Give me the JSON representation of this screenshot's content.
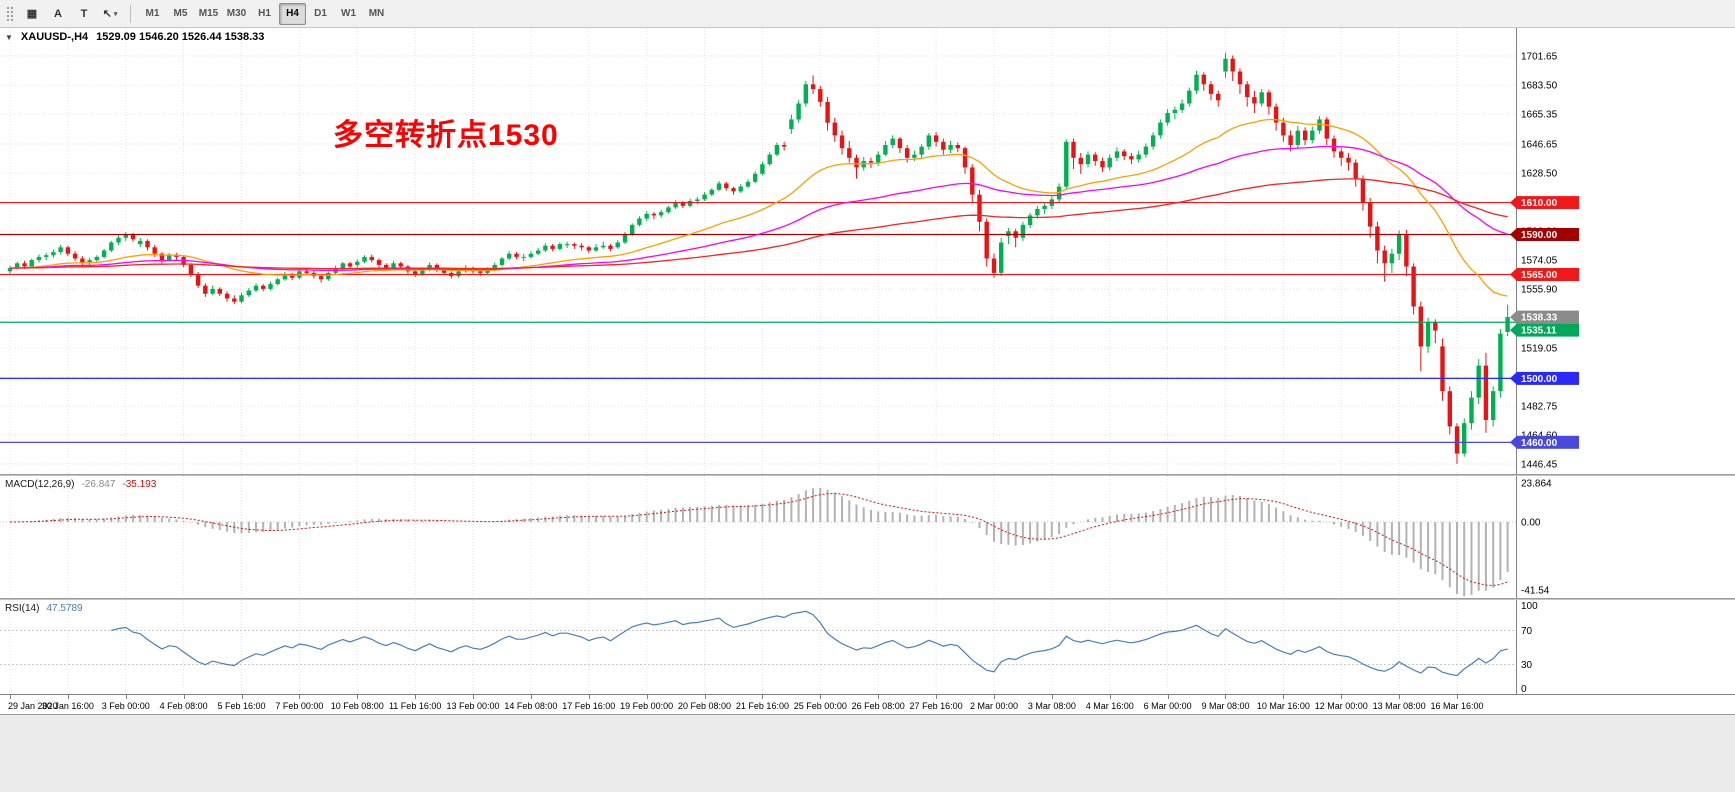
{
  "toolbar": {
    "grid_glyph": "▦",
    "text_tool_label": "A",
    "crosshair_label": "T",
    "cursor_glyph": "↖",
    "caret_glyph": "▾",
    "timeframes": [
      "M1",
      "M5",
      "M15",
      "M30",
      "H1",
      "H4",
      "D1",
      "W1",
      "MN"
    ],
    "active_timeframe": "H4"
  },
  "chart": {
    "collapse_icon": "▼",
    "title": "XAUUSD-,H4",
    "ohlc_text": "1529.09 1546.20 1526.44 1538.33",
    "annotation_text": "多空转折点1530",
    "annotation_color": "#ff0000"
  },
  "chart_data": {
    "type": "candlestick",
    "symbol": "XAUUSD-",
    "timeframe": "H4",
    "up_color": "#00b14f",
    "down_color": "#e81414",
    "ylim": [
      1440.2,
      1719.2
    ],
    "label_step": 8,
    "price_axis": {
      "labels": [
        "1701.65",
        "1683.50",
        "1665.35",
        "1646.65",
        "1628.50",
        "1610.35",
        "1592.20",
        "1574.05",
        "1555.90",
        "1537.75",
        "1519.05",
        "1500.90",
        "1482.75",
        "1464.60",
        "1446.45"
      ]
    },
    "time_labels": [
      "29 Jan 2020",
      "30 Jan 16:00",
      "3 Feb 00:00",
      "4 Feb 08:00",
      "5 Feb 16:00",
      "7 Feb 00:00",
      "10 Feb 08:00",
      "11 Feb 16:00",
      "13 Feb 00:00",
      "14 Feb 08:00",
      "17 Feb 16:00",
      "19 Feb 00:00",
      "20 Feb 08:00",
      "21 Feb 16:00",
      "25 Feb 00:00",
      "26 Feb 08:00",
      "27 Feb 16:00",
      "2 Mar 00:00",
      "3 Mar 08:00",
      "4 Mar 16:00",
      "6 Mar 00:00",
      "9 Mar 08:00",
      "10 Mar 16:00",
      "12 Mar 00:00",
      "13 Mar 08:00",
      "16 Mar 16:00"
    ],
    "hlines": [
      {
        "price": 1610.0,
        "label": "1610.00",
        "color": "#f01818"
      },
      {
        "price": 1590.0,
        "label": "1590.00",
        "color": "#a40000"
      },
      {
        "price": 1565.0,
        "label": "1565.00",
        "color": "#f01818"
      },
      {
        "price": 1535.11,
        "label": "1535.11",
        "color": "#00a85c"
      },
      {
        "price": 1500.0,
        "label": "1500.00",
        "color": "#2828ff"
      },
      {
        "price": 1460.0,
        "label": "1460.00",
        "color": "#4848dc"
      }
    ],
    "price_badges": [
      {
        "price": 1538.33,
        "label": "1538.33",
        "color": "#8b8b8b"
      }
    ],
    "moving_averages": [
      {
        "period": 30,
        "color": "#ffa000"
      },
      {
        "period": 70,
        "color": "#ff00ff"
      },
      {
        "period": 150,
        "color": "#ff2020"
      }
    ],
    "ohlc": [
      [
        1567,
        1570.5,
        1565.5,
        1569
      ],
      [
        1569,
        1573,
        1568,
        1572
      ],
      [
        1572,
        1573.5,
        1568.5,
        1570
      ],
      [
        1570,
        1575,
        1569.5,
        1574
      ],
      [
        1574,
        1577.5,
        1572.5,
        1576
      ],
      [
        1576,
        1578.5,
        1574,
        1577
      ],
      [
        1577,
        1580.5,
        1575.5,
        1579
      ],
      [
        1579,
        1583.5,
        1577.5,
        1582
      ],
      [
        1582,
        1583,
        1576.5,
        1578
      ],
      [
        1578,
        1579.5,
        1573.5,
        1575
      ],
      [
        1575,
        1576.5,
        1570,
        1572
      ],
      [
        1572,
        1575.5,
        1571,
        1574
      ],
      [
        1574,
        1577,
        1572.5,
        1576
      ],
      [
        1576,
        1581,
        1575,
        1580
      ],
      [
        1580,
        1586,
        1579,
        1585
      ],
      [
        1585,
        1589.5,
        1583.5,
        1588
      ],
      [
        1588,
        1591.5,
        1586,
        1590
      ],
      [
        1590,
        1591,
        1585.5,
        1587
      ],
      [
        1584,
        1588,
        1582,
        1586
      ],
      [
        1586,
        1587,
        1580,
        1582
      ],
      [
        1582,
        1583.5,
        1576,
        1578
      ],
      [
        1578,
        1579,
        1572,
        1574
      ],
      [
        1574,
        1578.5,
        1573,
        1577
      ],
      [
        1577,
        1578.5,
        1574,
        1576
      ],
      [
        1576,
        1577,
        1569.5,
        1571
      ],
      [
        1571,
        1572,
        1563.5,
        1565
      ],
      [
        1565,
        1566.5,
        1556.5,
        1558
      ],
      [
        1558,
        1559.5,
        1551,
        1553
      ],
      [
        1553,
        1558,
        1552,
        1556
      ],
      [
        1556,
        1557,
        1551.5,
        1553
      ],
      [
        1553,
        1554.5,
        1548,
        1550
      ],
      [
        1550,
        1552,
        1546.5,
        1548
      ],
      [
        1548,
        1553.5,
        1547,
        1552
      ],
      [
        1552,
        1556.5,
        1551,
        1555
      ],
      [
        1555,
        1559.5,
        1554,
        1558
      ],
      [
        1558,
        1559,
        1554.5,
        1556
      ],
      [
        1556,
        1560.5,
        1555,
        1559
      ],
      [
        1559,
        1563,
        1558,
        1562
      ],
      [
        1562,
        1566.5,
        1561,
        1565
      ],
      [
        1565,
        1566,
        1561.5,
        1563
      ],
      [
        1563,
        1568,
        1562,
        1567
      ],
      [
        1567,
        1568.5,
        1564.5,
        1566
      ],
      [
        1566,
        1567.5,
        1562.5,
        1564
      ],
      [
        1564,
        1565,
        1560,
        1562
      ],
      [
        1562,
        1567,
        1561,
        1566
      ],
      [
        1566,
        1570.5,
        1565,
        1569
      ],
      [
        1569,
        1573,
        1568,
        1572
      ],
      [
        1572,
        1573,
        1568.5,
        1570
      ],
      [
        1571,
        1574.5,
        1569.5,
        1573
      ],
      [
        1573,
        1577,
        1572,
        1576
      ],
      [
        1576,
        1577.5,
        1572.5,
        1574
      ],
      [
        1574,
        1575,
        1569.5,
        1571
      ],
      [
        1571,
        1572,
        1567.5,
        1569
      ],
      [
        1569,
        1573.5,
        1568,
        1572
      ],
      [
        1572,
        1573,
        1568.5,
        1570
      ],
      [
        1570,
        1571,
        1565.5,
        1567
      ],
      [
        1567,
        1568,
        1563.5,
        1565
      ],
      [
        1565,
        1569.5,
        1564,
        1568
      ],
      [
        1568,
        1572.5,
        1567,
        1571
      ],
      [
        1571,
        1572,
        1566.5,
        1568
      ],
      [
        1568,
        1569,
        1564.5,
        1566
      ],
      [
        1566,
        1567,
        1562.5,
        1564
      ],
      [
        1564,
        1568.5,
        1563,
        1567
      ],
      [
        1567,
        1571,
        1566,
        1569
      ],
      [
        1569,
        1570,
        1565.5,
        1567
      ],
      [
        1567,
        1568.5,
        1564,
        1566
      ],
      [
        1566,
        1569.5,
        1565,
        1568
      ],
      [
        1568,
        1572.5,
        1567,
        1571
      ],
      [
        1571,
        1576,
        1570,
        1575
      ],
      [
        1575,
        1579.5,
        1574,
        1578
      ],
      [
        1578,
        1579,
        1574.5,
        1576
      ],
      [
        1576,
        1578,
        1573.5,
        1576
      ],
      [
        1576,
        1579.5,
        1575,
        1578
      ],
      [
        1578,
        1581.5,
        1577,
        1580
      ],
      [
        1580,
        1584.5,
        1579,
        1583
      ],
      [
        1583,
        1584,
        1579.5,
        1581
      ],
      [
        1581,
        1585,
        1580,
        1584
      ],
      [
        1584,
        1585.5,
        1581.5,
        1584
      ],
      [
        1584,
        1585,
        1581,
        1583
      ],
      [
        1583,
        1584.5,
        1580,
        1582
      ],
      [
        1582,
        1583,
        1578.5,
        1580
      ],
      [
        1580,
        1584,
        1579,
        1582
      ],
      [
        1582,
        1585.5,
        1581,
        1583
      ],
      [
        1583,
        1584,
        1579.5,
        1581
      ],
      [
        1582,
        1586.5,
        1581,
        1585
      ],
      [
        1585,
        1591.5,
        1584,
        1590
      ],
      [
        1590,
        1597,
        1589,
        1596
      ],
      [
        1596,
        1601.5,
        1595,
        1600
      ],
      [
        1600,
        1604.5,
        1598.5,
        1603
      ],
      [
        1603,
        1604,
        1599.5,
        1602
      ],
      [
        1602,
        1605.5,
        1600.5,
        1604
      ],
      [
        1604,
        1608,
        1603,
        1607
      ],
      [
        1607,
        1611.5,
        1606,
        1610
      ],
      [
        1610,
        1611,
        1606.5,
        1608
      ],
      [
        1608,
        1612.5,
        1607,
        1611
      ],
      [
        1611,
        1613.5,
        1609,
        1612
      ],
      [
        1612,
        1616.5,
        1611,
        1615
      ],
      [
        1615,
        1619,
        1614,
        1618
      ],
      [
        1618,
        1623.5,
        1617,
        1622
      ],
      [
        1622,
        1623,
        1617.5,
        1619
      ],
      [
        1619,
        1620,
        1615,
        1617
      ],
      [
        1617,
        1621.5,
        1616,
        1620
      ],
      [
        1620,
        1624.5,
        1619,
        1623
      ],
      [
        1623,
        1629.5,
        1622,
        1628
      ],
      [
        1628,
        1635.5,
        1627,
        1634
      ],
      [
        1634,
        1641.5,
        1633,
        1640
      ],
      [
        1640,
        1647.5,
        1639,
        1646
      ],
      [
        1646,
        1648,
        1642.5,
        1645
      ],
      [
        1656,
        1665,
        1653,
        1662
      ],
      [
        1662,
        1674,
        1660,
        1672
      ],
      [
        1672,
        1686,
        1670,
        1684
      ],
      [
        1684,
        1689.5,
        1678,
        1681
      ],
      [
        1681,
        1683,
        1670,
        1673
      ],
      [
        1673,
        1676,
        1655,
        1660
      ],
      [
        1660,
        1663,
        1648,
        1652
      ],
      [
        1652,
        1655,
        1640,
        1644
      ],
      [
        1644,
        1648.5,
        1635,
        1638
      ],
      [
        1638,
        1640,
        1625,
        1632
      ],
      [
        1632,
        1638.5,
        1630,
        1636
      ],
      [
        1636,
        1638,
        1631.5,
        1635
      ],
      [
        1635,
        1642,
        1633,
        1640
      ],
      [
        1640,
        1648.5,
        1639,
        1646
      ],
      [
        1646,
        1652,
        1644,
        1650
      ],
      [
        1650,
        1651,
        1641,
        1644
      ],
      [
        1644,
        1646,
        1635,
        1638
      ],
      [
        1638,
        1642.5,
        1636,
        1640
      ],
      [
        1640,
        1646.5,
        1638,
        1645
      ],
      [
        1645,
        1653.5,
        1643,
        1652
      ],
      [
        1652,
        1654,
        1645,
        1648
      ],
      [
        1648,
        1650,
        1640,
        1643
      ],
      [
        1643,
        1648.5,
        1641,
        1646
      ],
      [
        1646,
        1647.5,
        1641.5,
        1644
      ],
      [
        1644,
        1645,
        1628,
        1632
      ],
      [
        1632,
        1634,
        1610,
        1615
      ],
      [
        1615,
        1618,
        1592,
        1598
      ],
      [
        1598,
        1600,
        1570,
        1575
      ],
      [
        1575,
        1578,
        1563,
        1566
      ],
      [
        1566,
        1588,
        1564,
        1585
      ],
      [
        1589,
        1594,
        1584,
        1592
      ],
      [
        1592,
        1593.5,
        1582,
        1588
      ],
      [
        1588,
        1598,
        1586,
        1596
      ],
      [
        1596,
        1603.5,
        1594,
        1602
      ],
      [
        1602,
        1608,
        1600,
        1606
      ],
      [
        1606,
        1610,
        1603,
        1608
      ],
      [
        1608,
        1614,
        1606,
        1612
      ],
      [
        1612,
        1622,
        1610,
        1620
      ],
      [
        1620,
        1649.5,
        1618,
        1648
      ],
      [
        1648,
        1650,
        1631,
        1638
      ],
      [
        1638,
        1641,
        1628,
        1634
      ],
      [
        1634,
        1642,
        1632,
        1640
      ],
      [
        1640,
        1641.5,
        1633,
        1636
      ],
      [
        1636,
        1638,
        1629,
        1632
      ],
      [
        1632,
        1640,
        1630,
        1638
      ],
      [
        1638,
        1644.5,
        1636,
        1642
      ],
      [
        1642,
        1643.5,
        1636.5,
        1639
      ],
      [
        1639,
        1641,
        1634,
        1637
      ],
      [
        1637,
        1642.5,
        1635,
        1640
      ],
      [
        1640,
        1647,
        1638,
        1645
      ],
      [
        1645,
        1654,
        1643,
        1652
      ],
      [
        1652,
        1662,
        1650,
        1660
      ],
      [
        1660,
        1668.5,
        1658,
        1666
      ],
      [
        1666,
        1670,
        1662,
        1668
      ],
      [
        1668,
        1674.5,
        1666,
        1672
      ],
      [
        1672,
        1682,
        1670,
        1680
      ],
      [
        1680,
        1692.5,
        1678,
        1690
      ],
      [
        1690,
        1691.5,
        1680,
        1684
      ],
      [
        1684,
        1686,
        1674,
        1678
      ],
      [
        1678,
        1680,
        1670,
        1674
      ],
      [
        1692,
        1703.5,
        1688,
        1700
      ],
      [
        1700,
        1702,
        1686,
        1692
      ],
      [
        1692,
        1694,
        1678,
        1684
      ],
      [
        1684,
        1686,
        1670,
        1676
      ],
      [
        1676,
        1680,
        1666,
        1672
      ],
      [
        1672,
        1681,
        1670,
        1679
      ],
      [
        1679,
        1680.5,
        1665,
        1670
      ],
      [
        1670,
        1672,
        1655,
        1660
      ],
      [
        1660,
        1663,
        1648,
        1652
      ],
      [
        1652,
        1655,
        1642,
        1646
      ],
      [
        1646,
        1658,
        1644,
        1655
      ],
      [
        1655,
        1657,
        1646,
        1649
      ],
      [
        1649,
        1657.5,
        1647,
        1655
      ],
      [
        1655,
        1664,
        1653,
        1662
      ],
      [
        1662,
        1663.5,
        1646,
        1650
      ],
      [
        1650,
        1652,
        1638,
        1642
      ],
      [
        1642,
        1644,
        1633,
        1638
      ],
      [
        1638,
        1641,
        1630,
        1635
      ],
      [
        1635,
        1637,
        1620,
        1625
      ],
      [
        1625,
        1627,
        1605,
        1610
      ],
      [
        1610,
        1613,
        1588,
        1595
      ],
      [
        1595,
        1598,
        1572,
        1580
      ],
      [
        1580,
        1583,
        1560.5,
        1572
      ],
      [
        1572,
        1581,
        1566,
        1578
      ],
      [
        1578,
        1592.5,
        1574,
        1590
      ],
      [
        1590,
        1593,
        1564,
        1570
      ],
      [
        1570,
        1572,
        1540,
        1545
      ],
      [
        1545,
        1548,
        1504.5,
        1520
      ],
      [
        1520,
        1538,
        1516,
        1535
      ],
      [
        1535,
        1537,
        1522,
        1530
      ],
      [
        1520,
        1525,
        1486,
        1492
      ],
      [
        1492,
        1495,
        1465,
        1470
      ],
      [
        1470,
        1472,
        1446.5,
        1453
      ],
      [
        1453,
        1475,
        1451,
        1472
      ],
      [
        1472,
        1492,
        1468,
        1488
      ],
      [
        1488,
        1512,
        1484,
        1508
      ],
      [
        1508,
        1516,
        1466,
        1474
      ],
      [
        1474,
        1495,
        1470,
        1492
      ],
      [
        1492,
        1531,
        1488,
        1528
      ],
      [
        1529.09,
        1546.2,
        1526.44,
        1538.33
      ]
    ],
    "macd": {
      "name": "MACD(12,26,9)",
      "value": "-26.847",
      "signal_value": "-35.193",
      "fast": 12,
      "slow": 26,
      "signal": 9,
      "ylim": [
        -46.3,
        28
      ],
      "axis_labels": [
        "23.864",
        "0.00",
        "-41.54"
      ],
      "hist_color": "#b2b2b2",
      "signal_color": "#e01010"
    },
    "rsi": {
      "name": "RSI(14)",
      "value": "47.5789",
      "period": 14,
      "ylim": [
        0,
        100
      ],
      "levels": [
        70,
        30
      ],
      "axis_labels": [
        "100",
        "70",
        "30",
        "0"
      ],
      "color": "#4a7ebb"
    }
  }
}
